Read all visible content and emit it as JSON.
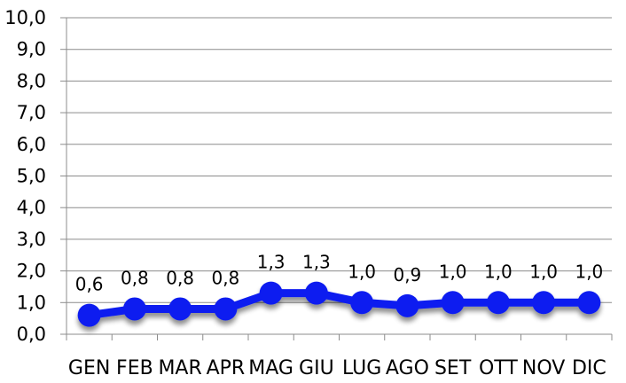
{
  "chart_data": {
    "type": "line",
    "categories": [
      "GEN",
      "FEB",
      "MAR",
      "APR",
      "MAG",
      "GIU",
      "LUG",
      "AGO",
      "SET",
      "OTT",
      "NOV",
      "DIC"
    ],
    "series": [
      {
        "values": [
          0.6,
          0.8,
          0.8,
          0.8,
          1.3,
          1.3,
          1.0,
          0.9,
          1.0,
          1.0,
          1.0,
          1.0
        ],
        "value_labels": [
          "0,6",
          "0,8",
          "0,8",
          "0,8",
          "1,3",
          "1,3",
          "1,0",
          "0,9",
          "1,0",
          "1,0",
          "1,0",
          "1,0"
        ],
        "color": "#0a1ef0"
      }
    ],
    "y_ticks": [
      "0,0",
      "1,0",
      "2,0",
      "3,0",
      "4,0",
      "5,0",
      "6,0",
      "7,0",
      "8,0",
      "9,0",
      "10,0"
    ],
    "ylim": [
      0,
      10
    ],
    "grid": true,
    "legend": "none",
    "title": "",
    "xlabel": "",
    "ylabel": ""
  }
}
